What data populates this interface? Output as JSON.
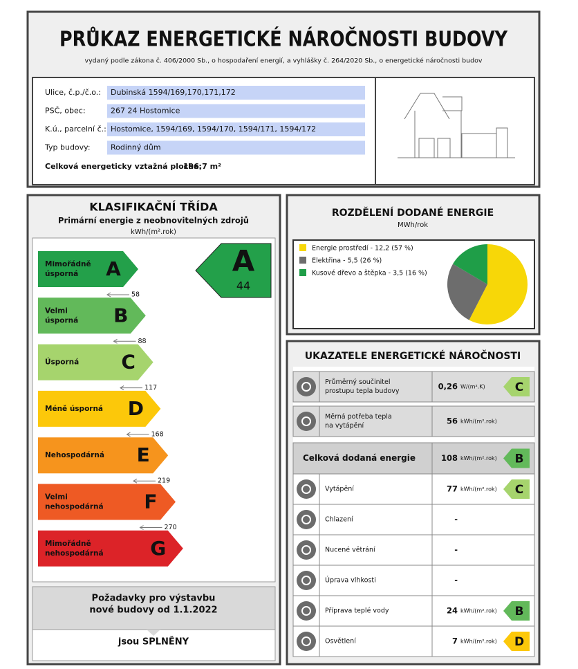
{
  "header": {
    "title": "PRŮKAZ ENERGETICKÉ NÁROČNOSTI BUDOVY",
    "subtitle": "vydaný podle zákona č. 406/2000 Sb., o hospodaření energií, a vyhlášky č. 264/2020 Sb., o energetické náročnosti budov"
  },
  "building": {
    "rows": [
      {
        "label": "Ulice, č.p./č.o.:",
        "value": "Dubinská 1594/169,170,171,172"
      },
      {
        "label": "PSČ, obec:",
        "value": "267 24 Hostomice"
      },
      {
        "label": "K.ú., parcelní č.:",
        "value": "Hostomice, 1594/169, 1594/170, 1594/171, 1594/172"
      },
      {
        "label": "Typ budovy:",
        "value": "Rodinný dům"
      }
    ],
    "area_label": "Celková energeticky vztažná plocha:",
    "area_value": "196,7 m²"
  },
  "classification": {
    "title": "KLASIFIKAČNÍ TŘÍDA",
    "subtitle": "Primární energie z neobnovitelných zdrojů",
    "unit": "kWh/(m².rok)",
    "classes": [
      {
        "letter": "A",
        "label": [
          "Mimořádně",
          "úsporná"
        ],
        "color": "#23a04a"
      },
      {
        "letter": "B",
        "label": [
          "Velmi",
          "úsporná"
        ],
        "color": "#62b95a"
      },
      {
        "letter": "C",
        "label": [
          "Úsporná"
        ],
        "color": "#a6d46d"
      },
      {
        "letter": "D",
        "label": [
          "Méně úsporná"
        ],
        "color": "#fcc80a"
      },
      {
        "letter": "E",
        "label": [
          "Nehospodárná"
        ],
        "color": "#f6941d"
      },
      {
        "letter": "F",
        "label": [
          "Velmi",
          "nehospodárná"
        ],
        "color": "#ee5a24"
      },
      {
        "letter": "G",
        "label": [
          "Mimořádně",
          "nehospodárná"
        ],
        "color": "#dc2328"
      }
    ],
    "thresholds": [
      58,
      88,
      117,
      168,
      219,
      270
    ],
    "result": {
      "class": "A",
      "value": 44
    }
  },
  "requirements": {
    "title": [
      "Požadavky pro výstavbu",
      "nové budovy od 1.1.2022"
    ],
    "result": "jsou SPLNĚNY"
  },
  "distribution": {
    "title": "ROZDĚLENÍ DODANÉ ENERGIE",
    "unit": "MWh/rok",
    "series": [
      {
        "name": "Energie prostředí - 12,2 (57 %)",
        "color": "#f7d708",
        "value": 12.2
      },
      {
        "name": "Elektřina - 5,5 (26 %)",
        "color": "#6d6d6d",
        "value": 5.5
      },
      {
        "name": "Kusové dřevo a štěpka - 3,5 (16 %)",
        "color": "#1f9e48",
        "value": 3.5
      }
    ]
  },
  "indicators": {
    "title": "UKAZATELE ENERGETICKÉ NÁROČNOSTI",
    "primary": [
      {
        "label": [
          "Průměrný součinitel",
          "prostupu tepla budovy"
        ],
        "value": "0,26",
        "unit": "W/(m².K)",
        "class": "C"
      },
      {
        "label": [
          "Měrná potřeba tepla",
          "na vytápění"
        ],
        "value": "56",
        "unit": "kWh/(m².rok)"
      }
    ],
    "total": {
      "label": "Celková dodaná energie",
      "value": "108",
      "unit": "kWh/(m².rok)",
      "class": "B"
    },
    "components": [
      {
        "label": "Vytápění",
        "value": "77",
        "unit": "kWh/(m².rok)",
        "class": "C"
      },
      {
        "label": "Chlazení",
        "value": "-"
      },
      {
        "label": "Nucené větrání",
        "value": "-"
      },
      {
        "label": "Úprava vlhkosti",
        "value": "-"
      },
      {
        "label": "Příprava teplé vody",
        "value": "24",
        "unit": "kWh/(m².rok)",
        "class": "B"
      },
      {
        "label": "Osvětlení",
        "value": "7",
        "unit": "kWh/(m².rok)",
        "class": "D"
      }
    ]
  }
}
